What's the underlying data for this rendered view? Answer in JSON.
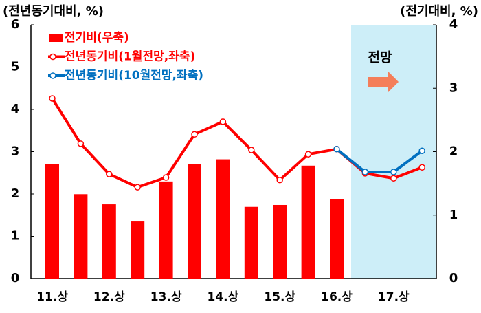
{
  "chart_data": {
    "type": "bar_line",
    "y_label": "(전년동기대비, %)",
    "y2_label": "(전기대비, %)",
    "annotation": "전망",
    "categories": [
      "11.상",
      null,
      "12.상",
      null,
      "13.상",
      null,
      "14.상",
      null,
      "15.상",
      null,
      "16.상",
      null,
      "17.상",
      null
    ],
    "ylim": [
      0,
      6
    ],
    "yticks": [
      0,
      1,
      2,
      3,
      4,
      5,
      6
    ],
    "y2lim": [
      0,
      4
    ],
    "y2ticks": [
      0,
      1,
      2,
      3,
      4
    ],
    "legend": "upper left",
    "series": [
      {
        "name": "전기비(우축)",
        "type": "bar",
        "axis": "y2",
        "color": "#ff0000",
        "values": [
          1.8,
          1.33,
          1.17,
          0.91,
          1.53,
          1.8,
          1.88,
          1.13,
          1.16,
          1.78,
          1.25,
          null,
          null,
          null
        ]
      },
      {
        "name": "전년동기비(1월전망,좌축)",
        "type": "line",
        "color": "#ff0000",
        "values": [
          4.26,
          3.19,
          2.47,
          2.16,
          2.39,
          3.41,
          3.71,
          3.04,
          2.33,
          2.94,
          3.06,
          2.49,
          2.37,
          2.63
        ]
      },
      {
        "name": "전년동기비(10월전망,좌축)",
        "type": "line",
        "color": "#0070c0",
        "values": [
          null,
          null,
          null,
          null,
          null,
          null,
          null,
          null,
          null,
          null,
          3.06,
          2.52,
          2.52,
          3.02
        ]
      }
    ]
  }
}
